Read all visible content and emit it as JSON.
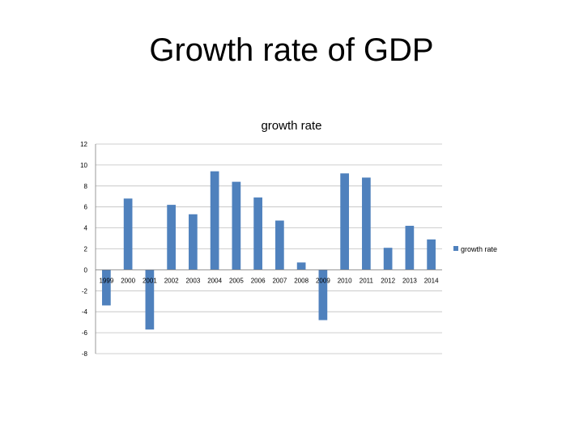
{
  "slide": {
    "title": "Growth rate of GDP"
  },
  "chart_data": {
    "type": "bar",
    "title": "growth rate",
    "categories": [
      "1999",
      "2000",
      "2001",
      "2002",
      "2003",
      "2004",
      "2005",
      "2006",
      "2007",
      "2008",
      "2009",
      "2010",
      "2011",
      "2012",
      "2013",
      "2014"
    ],
    "series": [
      {
        "name": "growth rate",
        "values": [
          -3.4,
          6.8,
          -5.7,
          6.2,
          5.3,
          9.4,
          8.4,
          6.9,
          4.7,
          0.7,
          -4.8,
          9.2,
          8.8,
          2.1,
          4.2,
          2.9
        ],
        "color": "#4f81bd"
      }
    ],
    "ylim": [
      -8,
      12
    ],
    "yticks": [
      12,
      10,
      8,
      6,
      4,
      2,
      0,
      -2,
      -4,
      -6,
      -8
    ],
    "grid": true,
    "legend": "right",
    "xlabel": "",
    "ylabel": ""
  }
}
